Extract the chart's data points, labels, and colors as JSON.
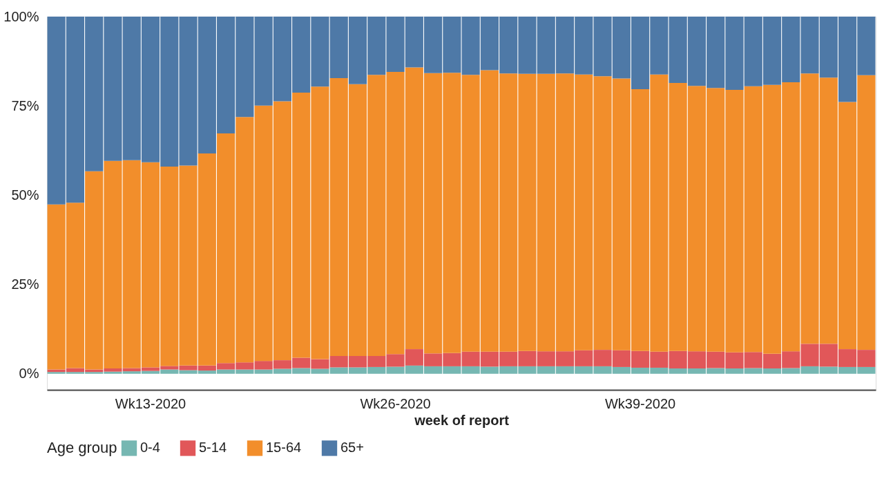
{
  "chart_data": {
    "type": "bar",
    "stacked": true,
    "xlabel": "week of report",
    "legend_title": "Age group",
    "legend": "bottom",
    "grid": false,
    "categories": [
      null,
      null,
      null,
      null,
      null,
      "Wk13-2020",
      null,
      null,
      null,
      null,
      null,
      null,
      null,
      null,
      null,
      null,
      null,
      null,
      "Wk26-2020",
      null,
      null,
      null,
      null,
      null,
      null,
      null,
      null,
      null,
      null,
      null,
      null,
      "Wk39-2020",
      null,
      null,
      null,
      null,
      null,
      null,
      null,
      null,
      null,
      null,
      null,
      null
    ],
    "ylim": [
      -4.5,
      100
    ],
    "yticks": [
      {
        "value": 0,
        "label": "0%"
      },
      {
        "value": 25,
        "label": "25%"
      },
      {
        "value": 50,
        "label": "50%"
      },
      {
        "value": 75,
        "label": "75%"
      },
      {
        "value": 100,
        "label": "100%"
      }
    ],
    "series": [
      {
        "name": "0-4",
        "color": "#76b7b2",
        "values": [
          0.5,
          0.5,
          0.5,
          0.6,
          0.7,
          0.8,
          1.2,
          1.0,
          0.9,
          1.2,
          1.2,
          1.2,
          1.4,
          1.6,
          1.4,
          1.8,
          1.8,
          1.9,
          2.0,
          2.3,
          2.1,
          2.1,
          2.1,
          2.0,
          2.1,
          2.1,
          2.1,
          2.1,
          2.1,
          2.1,
          1.9,
          1.7,
          1.7,
          1.5,
          1.5,
          1.6,
          1.5,
          1.6,
          1.5,
          1.6,
          2.1,
          2.0,
          1.9,
          1.9
        ]
      },
      {
        "name": "5-14",
        "color": "#e15759",
        "values": [
          0.7,
          1.1,
          0.7,
          0.9,
          0.9,
          1.0,
          1.0,
          1.3,
          1.4,
          1.8,
          2.0,
          2.4,
          2.4,
          2.9,
          2.7,
          3.2,
          3.2,
          3.1,
          3.5,
          4.6,
          3.6,
          3.7,
          4.1,
          4.2,
          4.1,
          4.3,
          4.2,
          4.2,
          4.5,
          4.6,
          4.7,
          4.7,
          4.5,
          4.9,
          4.8,
          4.6,
          4.5,
          4.5,
          4.1,
          4.7,
          6.3,
          6.4,
          5.0,
          4.8
        ]
      },
      {
        "name": "15-64",
        "color": "#f28e2b",
        "values": [
          46.2,
          46.3,
          55.5,
          58.1,
          58.2,
          57.4,
          55.8,
          56.0,
          59.4,
          64.3,
          68.7,
          71.5,
          72.5,
          74.2,
          76.3,
          77.8,
          76.1,
          78.7,
          79.0,
          78.9,
          78.5,
          78.5,
          77.5,
          78.8,
          77.9,
          77.6,
          77.7,
          77.8,
          77.2,
          76.6,
          76.1,
          73.3,
          77.6,
          75.0,
          74.3,
          73.8,
          73.5,
          74.4,
          75.3,
          75.3,
          75.7,
          74.5,
          69.2,
          76.9
        ]
      },
      {
        "name": "65+",
        "color": "#4e79a7",
        "values": [
          52.6,
          52.1,
          43.3,
          40.4,
          40.2,
          40.8,
          42.0,
          41.7,
          38.3,
          32.7,
          28.1,
          24.9,
          23.7,
          21.3,
          19.6,
          17.2,
          18.9,
          16.3,
          15.5,
          14.2,
          15.8,
          15.7,
          16.3,
          15.0,
          15.9,
          16.0,
          16.0,
          15.9,
          16.2,
          16.7,
          17.3,
          20.3,
          16.2,
          18.6,
          19.4,
          20.0,
          20.5,
          19.5,
          19.1,
          18.4,
          15.9,
          17.1,
          23.9,
          16.4
        ]
      }
    ]
  }
}
